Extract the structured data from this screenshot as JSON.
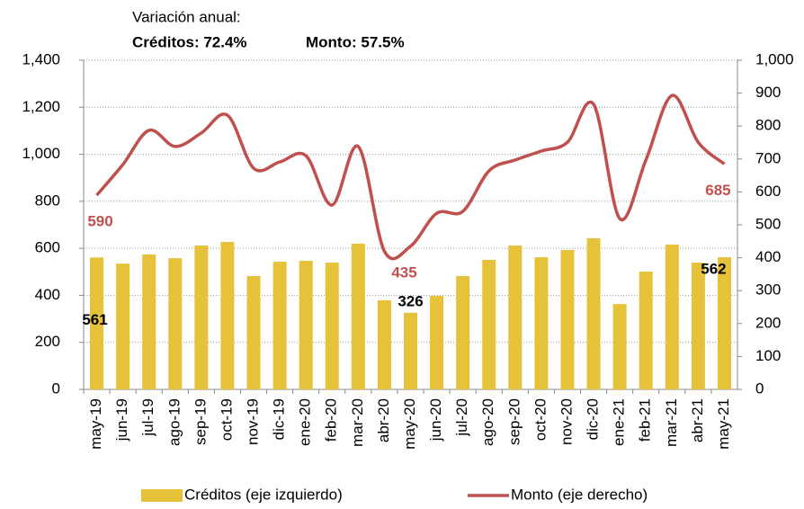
{
  "chart_data": {
    "type": "bar_line",
    "title": "Variación anual:",
    "subtitle": [
      "Créditos: 72.4%",
      "Monto: 57.5%"
    ],
    "categories": [
      "may-19",
      "jun-19",
      "jul-19",
      "ago-19",
      "sep-19",
      "oct-19",
      "nov-19",
      "dic-19",
      "ene-20",
      "feb-20",
      "mar-20",
      "abr-20",
      "may-20",
      "jun-20",
      "jul-20",
      "ago-20",
      "sep-20",
      "oct-20",
      "nov-20",
      "dic-20",
      "ene-21",
      "feb-21",
      "mar-21",
      "abr-21",
      "may-21"
    ],
    "series": [
      {
        "name": "Créditos (eje izquierdo)",
        "type": "bar",
        "color": "#E6C13A",
        "axis": "y",
        "values": [
          561,
          535,
          574,
          558,
          612,
          627,
          482,
          543,
          547,
          539,
          620,
          379,
          326,
          398,
          482,
          551,
          612,
          562,
          593,
          643,
          363,
          501,
          616,
          539,
          562
        ],
        "value_labels": [
          "561",
          null,
          null,
          null,
          null,
          null,
          null,
          null,
          null,
          null,
          null,
          null,
          "326",
          null,
          null,
          null,
          null,
          null,
          null,
          null,
          null,
          null,
          null,
          null,
          "562"
        ]
      },
      {
        "name": "Monto (eje derecho)",
        "type": "line",
        "color": "#C0504D",
        "axis": "y2",
        "values": [
          590,
          683,
          787,
          738,
          779,
          833,
          672,
          691,
          710,
          560,
          738,
          420,
          435,
          535,
          541,
          664,
          697,
          724,
          751,
          866,
          519,
          697,
          893,
          751,
          685
        ],
        "value_labels": [
          "590",
          null,
          null,
          null,
          null,
          null,
          null,
          null,
          null,
          null,
          null,
          null,
          "435",
          null,
          null,
          null,
          null,
          null,
          null,
          null,
          null,
          null,
          null,
          null,
          "685"
        ]
      }
    ],
    "ylim": [
      0,
      1400
    ],
    "yticks": [
      0,
      200,
      400,
      600,
      800,
      {
        "value": 1000,
        "label": "1,000"
      },
      {
        "value": 1200,
        "label": "1,200"
      },
      {
        "value": 1400,
        "label": "1,400"
      }
    ],
    "y2lim": [
      0,
      1000
    ],
    "y2ticks": [
      0,
      100,
      200,
      300,
      400,
      500,
      600,
      700,
      800,
      900,
      {
        "value": 1000,
        "label": "1,000"
      }
    ],
    "grid": true,
    "legend": "bottom"
  }
}
